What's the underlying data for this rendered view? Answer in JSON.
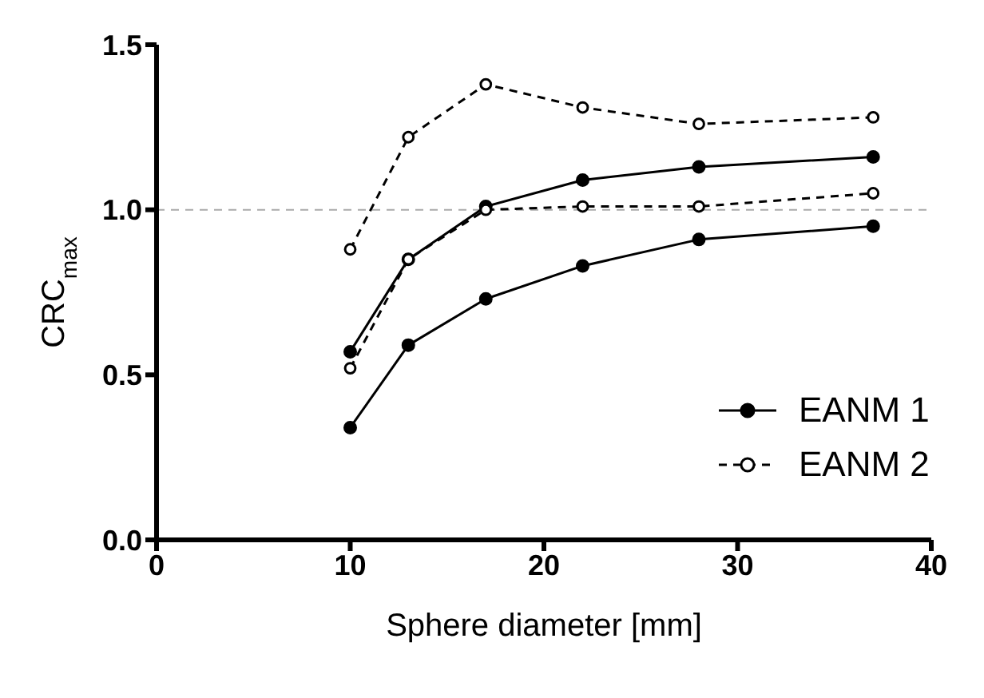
{
  "chart_data": {
    "type": "line",
    "xlabel": "Sphere diameter [mm]",
    "ylabel": "CRC$_{max}$",
    "x": [
      10,
      13,
      17,
      22,
      28,
      37
    ],
    "series": [
      {
        "name": "EANM 1",
        "color": "#000000",
        "line_style": "solid",
        "values": [
          0.57,
          0.85,
          1.01,
          1.09,
          1.13,
          1.16
        ]
      },
      {
        "color": "#000000",
        "line_style": "solid",
        "values": [
          0.34,
          0.59,
          0.73,
          0.83,
          0.91,
          0.95
        ]
      },
      {
        "name": "EANM 2",
        "color": "#000000",
        "line_style": "dashed",
        "values": [
          0.52,
          0.85,
          1.0,
          1.01,
          1.01,
          1.05
        ]
      },
      {
        "color": "#000000",
        "line_style": "dashed",
        "values": [
          0.88,
          1.22,
          1.38,
          1.31,
          1.26,
          1.28
        ]
      }
    ],
    "marker": "circle",
    "xlim": [
      0,
      40
    ],
    "xticks": [
      0,
      10,
      20,
      30,
      40
    ],
    "ylim": [
      0,
      1.5
    ],
    "yticks": [
      {
        "value": 0,
        "label": "0.0"
      },
      {
        "value": 0.5,
        "label": "0.5"
      },
      {
        "value": 1,
        "label": "1.0"
      },
      {
        "value": 1.5,
        "label": "1.5"
      }
    ],
    "ref_lines": [
      {
        "axis": "y",
        "value": 1,
        "color": "#aaaaaa",
        "line_style": "dashed"
      }
    ],
    "legend": "right",
    "grid": false
  }
}
